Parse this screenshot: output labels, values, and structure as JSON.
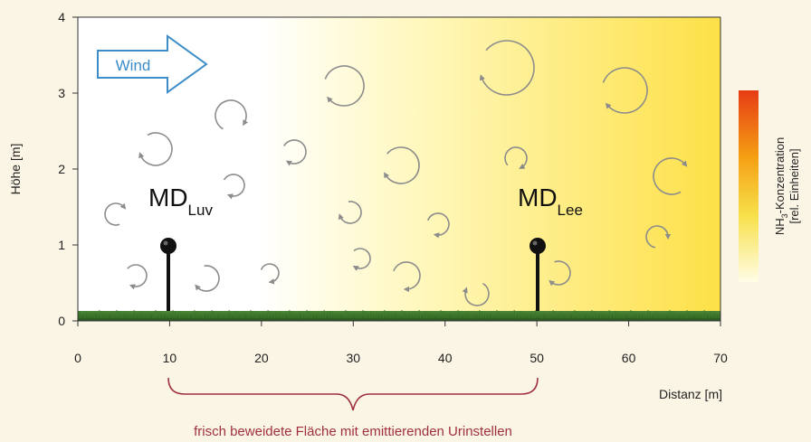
{
  "axes": {
    "y_label": "Höhe [m]",
    "x_label": "Distanz [m]",
    "y_ticks": [
      "0",
      "1",
      "2",
      "3",
      "4"
    ],
    "x_ticks": [
      "0",
      "10",
      "20",
      "30",
      "40",
      "50",
      "60",
      "70"
    ],
    "x_range": [
      0,
      70
    ],
    "y_range": [
      0,
      4
    ]
  },
  "wind_label": "Wind",
  "samplers": [
    {
      "main": "MD",
      "sub": "Luv",
      "distance_m": 10,
      "height_m": 1.3
    },
    {
      "main": "MD",
      "sub": "Lee",
      "distance_m": 50,
      "height_m": 1.3
    }
  ],
  "legend": {
    "title_prefix": "NH",
    "title_sub": "3",
    "title_suffix": "-Konzentration",
    "unit": "[rel. Einheiten]"
  },
  "brace_label": "frisch beweidete Fläche mit emittierenden Urinstellen",
  "colors": {
    "background": "#fbf5e6",
    "brace": "#a03040",
    "wind_arrow": "#3c8cc8",
    "eddy": "#8c8c8c",
    "plume_high": "#e63c14",
    "plume_mid": "#f5d200",
    "plume_low": "#fffde6"
  }
}
